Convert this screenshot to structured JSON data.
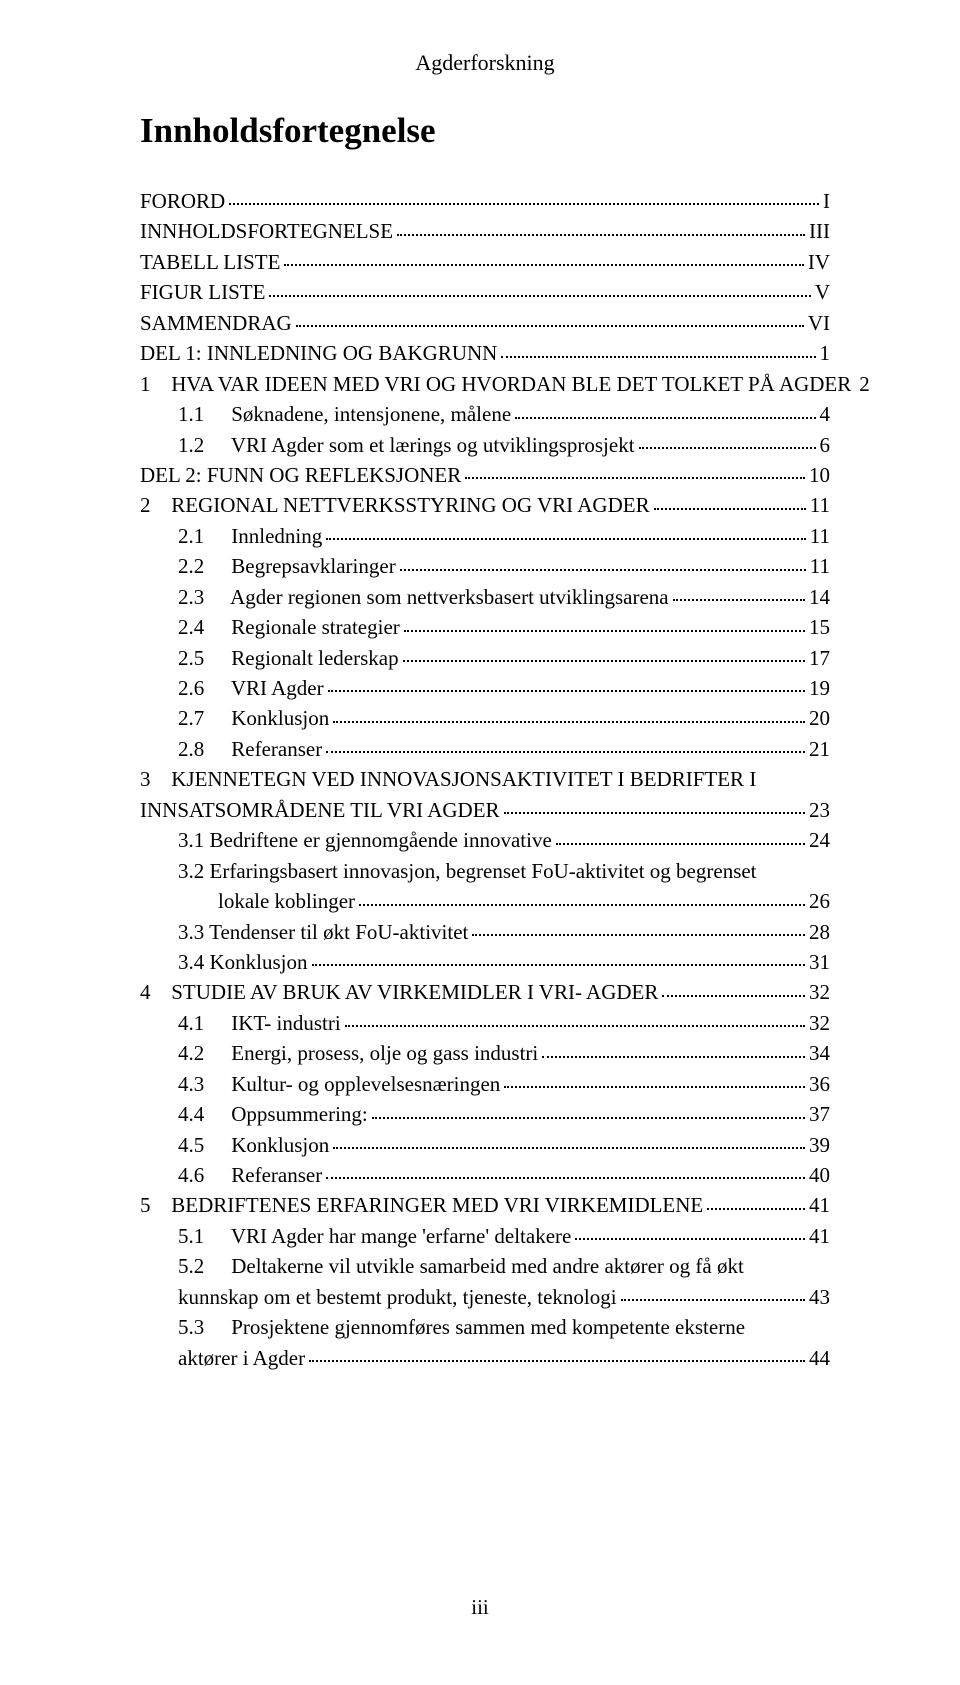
{
  "running_header": "Agderforskning",
  "title": "Innholdsfortegnelse",
  "page_number": "iii",
  "toc": [
    {
      "level": 0,
      "label": "FORORD",
      "page": "I"
    },
    {
      "level": 0,
      "label": "INNHOLDSFORTEGNELSE",
      "page": "III"
    },
    {
      "level": 0,
      "label": "TABELL LISTE",
      "page": "IV"
    },
    {
      "level": 0,
      "label": "FIGUR LISTE",
      "page": "V"
    },
    {
      "level": 0,
      "label": "SAMMENDRAG",
      "page": "VI"
    },
    {
      "level": 0,
      "label": "DEL 1: INNLEDNING OG BAKGRUNN",
      "page": "1"
    },
    {
      "level": 1,
      "num": "1",
      "label": "HVA VAR IDEEN MED VRI OG HVORDAN BLE DET TOLKET PÅ AGDER",
      "page": "2",
      "sc": true
    },
    {
      "level": 2,
      "num": "1.1",
      "label": "Søknadene, intensjonene, målene",
      "page": "4"
    },
    {
      "level": 2,
      "num": "1.2",
      "label": "VRI Agder som et lærings og utviklingsprosjekt",
      "page": "6"
    },
    {
      "level": 0,
      "label": "DEL 2: FUNN OG REFLEKSJONER",
      "page": "10"
    },
    {
      "level": 1,
      "num": "2",
      "label": "REGIONAL NETTVERKSSTYRING OG VRI AGDER",
      "page": "11",
      "sc": true
    },
    {
      "level": 2,
      "num": "2.1",
      "label": "Innledning",
      "page": "11"
    },
    {
      "level": 2,
      "num": "2.2",
      "label": "Begrepsavklaringer",
      "page": "11"
    },
    {
      "level": 2,
      "num": "2.3",
      "label": "Agder regionen som nettverksbasert utviklingsarena",
      "page": "14"
    },
    {
      "level": 2,
      "num": "2.4",
      "label": "Regionale strategier",
      "page": "15"
    },
    {
      "level": 2,
      "num": "2.5",
      "label": "Regionalt lederskap",
      "page": "17"
    },
    {
      "level": 2,
      "num": "2.6",
      "label": "VRI Agder",
      "page": "19"
    },
    {
      "level": 2,
      "num": "2.7",
      "label": "Konklusjon",
      "page": "20"
    },
    {
      "level": 2,
      "num": "2.8",
      "label": "Referanser",
      "page": "21"
    },
    {
      "level": 1,
      "num": "3",
      "label_line1": "KJENNETEGN   VED   INNOVASJONSAKTIVITET   I   BEDRIFTER   I",
      "label_line2": "INNSATSOMRÅDENE TIL VRI AGDER",
      "page": "23",
      "sc": true,
      "multi": true
    },
    {
      "level": "1b",
      "num": "3.1",
      "label": "Bedriftene er gjennomgående innovative",
      "page": "24"
    },
    {
      "level": "1b",
      "num": "3.2",
      "label_line1": "Erfaringsbasert innovasjon, begrenset FoU-aktivitet og begrenset",
      "label_line2": "lokale koblinger",
      "page": "26",
      "multi": true,
      "cont_indent": 40
    },
    {
      "level": "1b",
      "num": "3.3",
      "label": "Tendenser til økt FoU-aktivitet",
      "page": "28"
    },
    {
      "level": "1b",
      "num": "3.4",
      "label": "Konklusjon",
      "page": "31"
    },
    {
      "level": 1,
      "num": "4",
      "label": "STUDIE AV BRUK AV VIRKEMIDLER I VRI- AGDER",
      "page": "32",
      "sc": true
    },
    {
      "level": 2,
      "num": "4.1",
      "label": "IKT- industri",
      "page": "32"
    },
    {
      "level": 2,
      "num": "4.2",
      "label": "Energi, prosess, olje og gass industri",
      "page": "34"
    },
    {
      "level": 2,
      "num": "4.3",
      "label": "Kultur- og opplevelsesnæringen",
      "page": "36"
    },
    {
      "level": 2,
      "num": "4.4",
      "label": "Oppsummering:",
      "page": "37"
    },
    {
      "level": 2,
      "num": "4.5",
      "label": "Konklusjon",
      "page": "39"
    },
    {
      "level": 2,
      "num": "4.6",
      "label": "Referanser",
      "page": "40"
    },
    {
      "level": 1,
      "num": "5",
      "label": "BEDRIFTENES ERFARINGER MED VRI VIRKEMIDLENE",
      "page": "41",
      "sc": true
    },
    {
      "level": 2,
      "num": "5.1",
      "label": "VRI Agder har mange 'erfarne' deltakere",
      "page": "41"
    },
    {
      "level": 2,
      "num": "5.2",
      "label_line1": "Deltakerne vil utvikle samarbeid med andre aktører og få økt",
      "label_line2": "kunnskap om et bestemt produkt, tjeneste, teknologi",
      "page": "43",
      "multi": true,
      "cont_indent": 0
    },
    {
      "level": 2,
      "num": "5.3",
      "label_line1": "Prosjektene gjennomføres sammen med kompetente eksterne",
      "label_line2": "aktører i Agder",
      "page": "44",
      "multi": true,
      "cont_indent": 0
    }
  ]
}
